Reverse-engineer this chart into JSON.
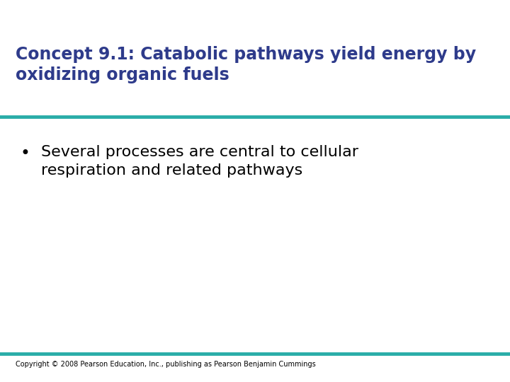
{
  "title_line1": "Concept 9.1: Catabolic pathways yield energy by",
  "title_line2": "oxidizing organic fuels",
  "title_color": "#2E3B8B",
  "title_fontsize": 17,
  "title_bold": true,
  "separator_color": "#2AADA8",
  "separator_linewidth": 3.5,
  "bullet_text_line1": "Several processes are central to cellular",
  "bullet_text_line2": "respiration and related pathways",
  "bullet_color": "#000000",
  "bullet_fontsize": 16,
  "copyright_text": "Copyright © 2008 Pearson Education, Inc., publishing as Pearson Benjamin Cummings",
  "copyright_color": "#000000",
  "copyright_fontsize": 7,
  "background_color": "#ffffff"
}
